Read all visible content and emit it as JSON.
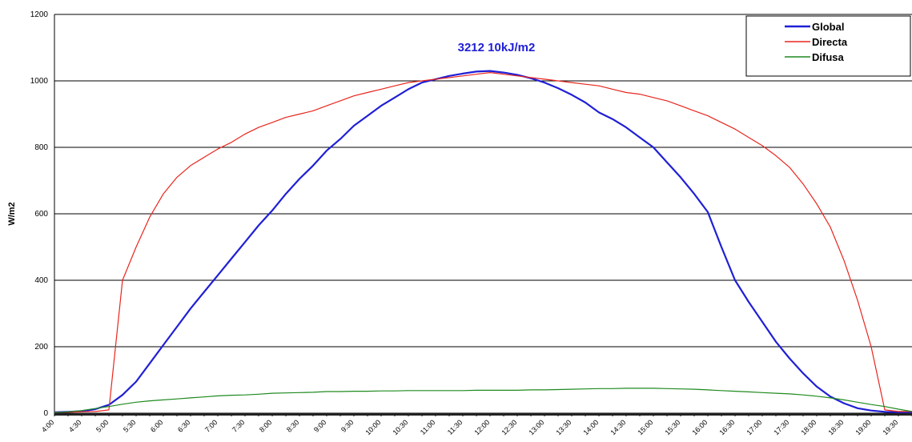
{
  "chart_data": {
    "type": "line",
    "annotation": "3212  10kJ/m2",
    "y_label": "W/m2",
    "categories": [
      "4:00",
      null,
      "4:30",
      null,
      "5:00",
      null,
      "5:30",
      null,
      "6:00",
      null,
      "6:30",
      null,
      "7:00",
      null,
      "7:30",
      null,
      "8:00",
      null,
      "8:30",
      null,
      "9:00",
      null,
      "9:30",
      null,
      "10:00",
      null,
      "10:30",
      null,
      "11:00",
      null,
      "11:30",
      null,
      "12:00",
      null,
      "12:30",
      null,
      "13:00",
      null,
      "13:30",
      null,
      "14:00",
      null,
      "14:30",
      null,
      "15:00",
      null,
      "15:30",
      null,
      "16:00",
      null,
      "16:30",
      null,
      "17:00",
      null,
      "17:30",
      null,
      "18:00",
      null,
      "18:30",
      null,
      "19:00",
      null,
      "19:30",
      null
    ],
    "series": [
      {
        "name": "Global",
        "color": "#1f1fd6",
        "values": [
          3,
          4,
          6,
          12,
          25,
          55,
          95,
          150,
          205,
          260,
          315,
          365,
          415,
          465,
          515,
          565,
          610,
          660,
          705,
          745,
          790,
          825,
          865,
          895,
          925,
          950,
          975,
          995,
          1005,
          1015,
          1022,
          1028,
          1030,
          1025,
          1018,
          1008,
          995,
          978,
          958,
          935,
          905,
          885,
          860,
          830,
          800,
          755,
          710,
          660,
          605,
          500,
          400,
          335,
          275,
          215,
          165,
          120,
          80,
          50,
          30,
          15,
          8,
          4,
          3,
          3
        ]
      },
      {
        "name": "Directa",
        "color": "#e8261e",
        "values": [
          3,
          3,
          4,
          5,
          10,
          400,
          500,
          590,
          660,
          710,
          745,
          770,
          795,
          815,
          840,
          860,
          875,
          890,
          900,
          910,
          925,
          940,
          955,
          965,
          975,
          985,
          995,
          1000,
          1005,
          1010,
          1015,
          1020,
          1025,
          1020,
          1015,
          1010,
          1005,
          1000,
          995,
          990,
          985,
          975,
          965,
          960,
          950,
          940,
          925,
          910,
          895,
          875,
          855,
          830,
          805,
          775,
          740,
          690,
          630,
          560,
          460,
          340,
          200,
          10,
          5,
          5
        ]
      },
      {
        "name": "Difusa",
        "color": "#1f8a1f",
        "values": [
          2,
          4,
          8,
          14,
          20,
          27,
          33,
          37,
          40,
          43,
          46,
          49,
          52,
          54,
          55,
          57,
          60,
          61,
          62,
          63,
          65,
          65,
          66,
          66,
          67,
          67,
          68,
          68,
          68,
          68,
          68,
          69,
          69,
          69,
          69,
          70,
          70,
          71,
          72,
          73,
          74,
          74,
          75,
          75,
          75,
          74,
          73,
          72,
          70,
          68,
          66,
          64,
          62,
          60,
          58,
          55,
          51,
          46,
          40,
          33,
          26,
          20,
          12,
          5
        ]
      }
    ],
    "ylim": [
      0,
      1200
    ],
    "yticks": [
      0,
      200,
      400,
      600,
      800,
      1000,
      1200
    ],
    "grid": true,
    "legend": "top-right"
  }
}
